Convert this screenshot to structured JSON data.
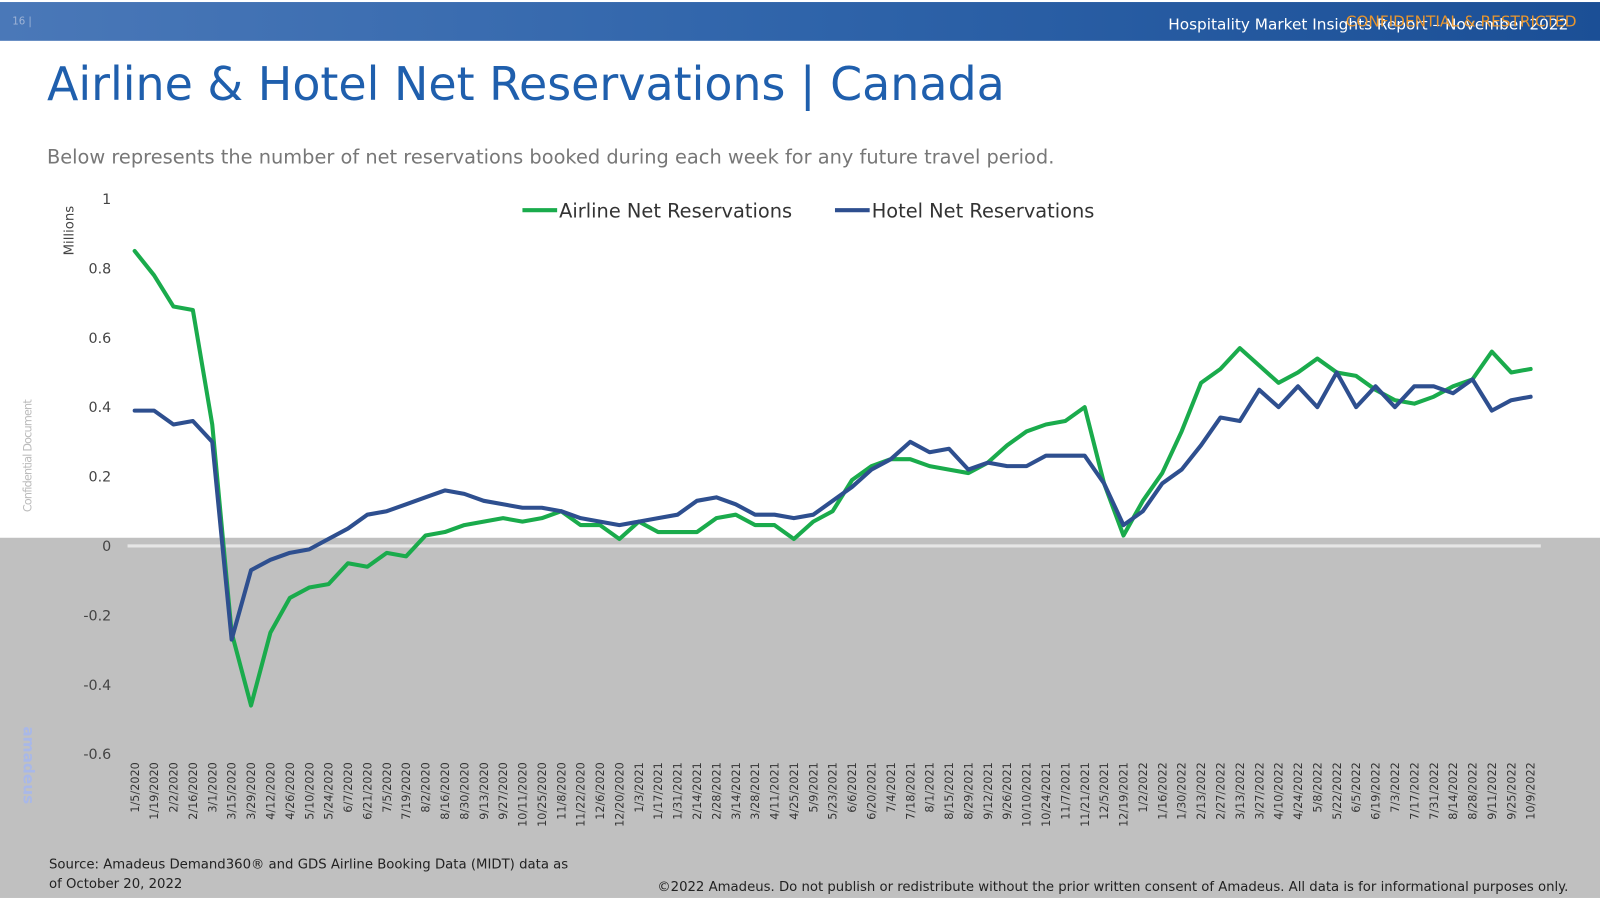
{
  "page_number": "16 |",
  "report_title": "Hospitality Market Insights Report – November 2022",
  "confidential_banner": "CONFIDENTIAL & RESTRICTED",
  "side_label": "Confidential Document",
  "logo": "amadeus",
  "source": "Source: Amadeus Demand360® and GDS Airline Booking Data (MIDT) data as of October 20, 2022",
  "copyright": "©2022 Amadeus. Do not publish or redistribute without the prior written consent of Amadeus. All data is for informational purposes only.",
  "chart_data": {
    "type": "line",
    "title": "Airline & Hotel Net Reservations | Canada",
    "subtitle": "Below represents the number of net reservations booked during each week for any future travel period.",
    "y_label": "Millions",
    "legend": "top",
    "grid": false,
    "categories": [
      "1/5/2020",
      "1/19/2020",
      "2/2/2020",
      "2/16/2020",
      "3/1/2020",
      "3/15/2020",
      "3/29/2020",
      "4/12/2020",
      "4/26/2020",
      "5/10/2020",
      "5/24/2020",
      "6/7/2020",
      "6/21/2020",
      "7/5/2020",
      "7/19/2020",
      "8/2/2020",
      "8/16/2020",
      "8/30/2020",
      "9/13/2020",
      "9/27/2020",
      "10/11/2020",
      "10/25/2020",
      "11/8/2020",
      "11/22/2020",
      "12/6/2020",
      "12/20/2020",
      "1/3/2021",
      "1/17/2021",
      "1/31/2021",
      "2/14/2021",
      "2/28/2021",
      "3/14/2021",
      "3/28/2021",
      "4/11/2021",
      "4/25/2021",
      "5/9/2021",
      "5/23/2021",
      "6/6/2021",
      "6/20/2021",
      "7/4/2021",
      "7/18/2021",
      "8/1/2021",
      "8/15/2021",
      "8/29/2021",
      "9/12/2021",
      "9/26/2021",
      "10/10/2021",
      "10/24/2021",
      "11/7/2021",
      "11/21/2021",
      "12/5/2021",
      "12/19/2021",
      "1/2/2022",
      "1/16/2022",
      "1/30/2022",
      "2/13/2022",
      "2/27/2022",
      "3/13/2022",
      "3/27/2022",
      "4/10/2022",
      "4/24/2022",
      "5/8/2022",
      "5/22/2022",
      "6/5/2022",
      "6/19/2022",
      "7/3/2022",
      "7/17/2022",
      "7/31/2022",
      "8/14/2022",
      "8/28/2022",
      "9/11/2022",
      "9/25/2022",
      "10/9/2022"
    ],
    "series": [
      {
        "name": "Airline Net Reservations",
        "color": "#1aab4c",
        "values": [
          0.85,
          0.78,
          0.69,
          0.68,
          0.35,
          -0.25,
          -0.46,
          -0.25,
          -0.15,
          -0.12,
          -0.11,
          -0.05,
          -0.06,
          -0.02,
          -0.03,
          0.03,
          0.04,
          0.06,
          0.07,
          0.08,
          0.07,
          0.08,
          0.1,
          0.06,
          0.06,
          0.02,
          0.07,
          0.04,
          0.04,
          0.04,
          0.08,
          0.09,
          0.06,
          0.06,
          0.02,
          0.07,
          0.1,
          0.19,
          0.23,
          0.25,
          0.25,
          0.23,
          0.22,
          0.21,
          0.24,
          0.29,
          0.33,
          0.35,
          0.36,
          0.4,
          0.18,
          0.03,
          0.13,
          0.21,
          0.33,
          0.47,
          0.51,
          0.57,
          0.52,
          0.47,
          0.5,
          0.54,
          0.5,
          0.49,
          0.45,
          0.42,
          0.41,
          0.43,
          0.46,
          0.48,
          0.56,
          0.5,
          0.51
        ]
      },
      {
        "name": "Hotel Net Reservations",
        "color": "#2e4f8f",
        "values": [
          0.39,
          0.39,
          0.35,
          0.36,
          0.3,
          -0.27,
          -0.07,
          -0.04,
          -0.02,
          -0.01,
          0.02,
          0.05,
          0.09,
          0.1,
          0.12,
          0.14,
          0.16,
          0.15,
          0.13,
          0.12,
          0.11,
          0.11,
          0.1,
          0.08,
          0.07,
          0.06,
          0.07,
          0.08,
          0.09,
          0.13,
          0.14,
          0.12,
          0.09,
          0.09,
          0.08,
          0.09,
          0.13,
          0.17,
          0.22,
          0.25,
          0.3,
          0.27,
          0.28,
          0.22,
          0.24,
          0.23,
          0.23,
          0.26,
          0.26,
          0.26,
          0.18,
          0.06,
          0.1,
          0.18,
          0.22,
          0.29,
          0.37,
          0.36,
          0.45,
          0.4,
          0.46,
          0.4,
          0.5,
          0.4,
          0.46,
          0.4,
          0.46,
          0.46,
          0.44,
          0.48,
          0.39,
          0.42,
          0.43
        ]
      }
    ],
    "ylim": [
      -0.6,
      1
    ],
    "yticks": [
      -0.6,
      -0.4,
      -0.2,
      0,
      0.2,
      0.4,
      0.6,
      0.8,
      1
    ]
  }
}
